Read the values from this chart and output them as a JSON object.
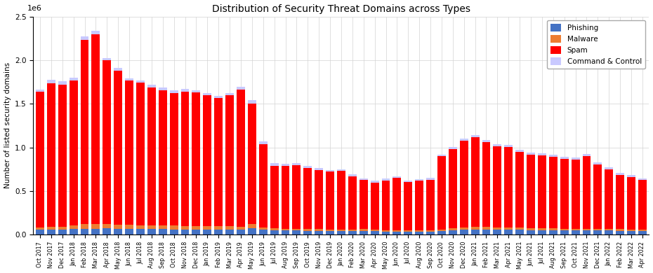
{
  "title": "Distribution of Security Threat Domains across Types",
  "ylabel": "Number of listed security domains",
  "ylim": [
    0,
    2500000
  ],
  "yticks": [
    0.0,
    500000,
    1000000,
    1500000,
    2000000,
    2500000
  ],
  "colors": {
    "phishing": "#4472C4",
    "malware": "#ED7D31",
    "spam": "#FF0000",
    "cnc": "#C9C9FF"
  },
  "legend_labels": [
    "Phishing",
    "Malware",
    "Spam",
    "Command & Control"
  ],
  "categories": [
    "Oct 2017",
    "Nov 2017",
    "Dec 2017",
    "Jan 2018",
    "Feb 2018",
    "Mar 2018",
    "Apr 2018",
    "May 2018",
    "Jun 2018",
    "Jul 2018",
    "Aug 2018",
    "Sep 2018",
    "Oct 2018",
    "Nov 2018",
    "Dec 2018",
    "Jan 2019",
    "Feb 2019",
    "Mar 2019",
    "Apr 2019",
    "May 2019",
    "Jun 2019",
    "Jul 2019",
    "Aug 2019",
    "Sep 2019",
    "Oct 2019",
    "Nov 2019",
    "Dec 2019",
    "Jan 2020",
    "Feb 2020",
    "Mar 2020",
    "Apr 2020",
    "May 2020",
    "Jun 2020",
    "Jul 2020",
    "Aug 2020",
    "Sep 2020",
    "Oct 2020",
    "Nov 2020",
    "Dec 2020",
    "Jan 2021",
    "Feb 2021",
    "Mar 2021",
    "Apr 2021",
    "May 2021",
    "Jun 2021",
    "Jul 2021",
    "Aug 2021",
    "Sep 2021",
    "Oct 2021",
    "Nov 2021",
    "Dec 2021",
    "Jan 2022",
    "Feb 2022",
    "Mar 2022",
    "Apr 2022"
  ],
  "phishing": [
    55000,
    55000,
    58000,
    65000,
    70000,
    70000,
    75000,
    70000,
    68000,
    65000,
    65000,
    63000,
    62000,
    62000,
    60000,
    60000,
    58000,
    58000,
    57000,
    75000,
    55000,
    50000,
    48000,
    48000,
    45000,
    45000,
    43000,
    42000,
    42000,
    45000,
    40000,
    38000,
    37000,
    38000,
    37000,
    36000,
    42000,
    50000,
    55000,
    60000,
    60000,
    58000,
    56000,
    55000,
    54000,
    53000,
    52000,
    50000,
    50000,
    50000,
    48000,
    48000,
    46000,
    45000,
    43000
  ],
  "malware": [
    30000,
    32000,
    32000,
    40000,
    50000,
    55000,
    50000,
    48000,
    45000,
    45000,
    43000,
    42000,
    42000,
    40000,
    40000,
    38000,
    38000,
    38000,
    37000,
    45000,
    28000,
    22000,
    20000,
    20000,
    20000,
    18000,
    18000,
    18000,
    18000,
    20000,
    18000,
    16000,
    16000,
    16000,
    15000,
    15000,
    18000,
    22000,
    25000,
    28000,
    28000,
    26000,
    25000,
    24000,
    23000,
    22000,
    22000,
    20000,
    20000,
    20000,
    19000,
    19000,
    17000,
    16000,
    15000
  ],
  "spam": [
    1550000,
    1650000,
    1630000,
    1660000,
    2110000,
    2170000,
    1870000,
    1760000,
    1650000,
    1630000,
    1580000,
    1550000,
    1520000,
    1540000,
    1530000,
    1500000,
    1470000,
    1500000,
    1570000,
    1380000,
    950000,
    720000,
    720000,
    730000,
    700000,
    680000,
    660000,
    670000,
    610000,
    560000,
    540000,
    570000,
    600000,
    550000,
    570000,
    580000,
    840000,
    910000,
    1000000,
    1030000,
    970000,
    930000,
    920000,
    870000,
    840000,
    830000,
    820000,
    800000,
    790000,
    830000,
    740000,
    680000,
    620000,
    600000,
    570000
  ],
  "cnc": [
    30000,
    40000,
    35000,
    35000,
    40000,
    40000,
    30000,
    30000,
    28000,
    28000,
    28000,
    28000,
    28000,
    28000,
    28000,
    28000,
    28000,
    28000,
    28000,
    40000,
    35000,
    30000,
    25000,
    22000,
    22000,
    22000,
    22000,
    22000,
    22000,
    22000,
    20000,
    20000,
    18000,
    18000,
    18000,
    18000,
    20000,
    22000,
    25000,
    25000,
    25000,
    25000,
    25000,
    25000,
    25000,
    25000,
    25000,
    25000,
    25000,
    25000,
    25000,
    25000,
    23000,
    22000,
    20000
  ],
  "figsize": [
    9.3,
    3.9
  ],
  "dpi": 100
}
